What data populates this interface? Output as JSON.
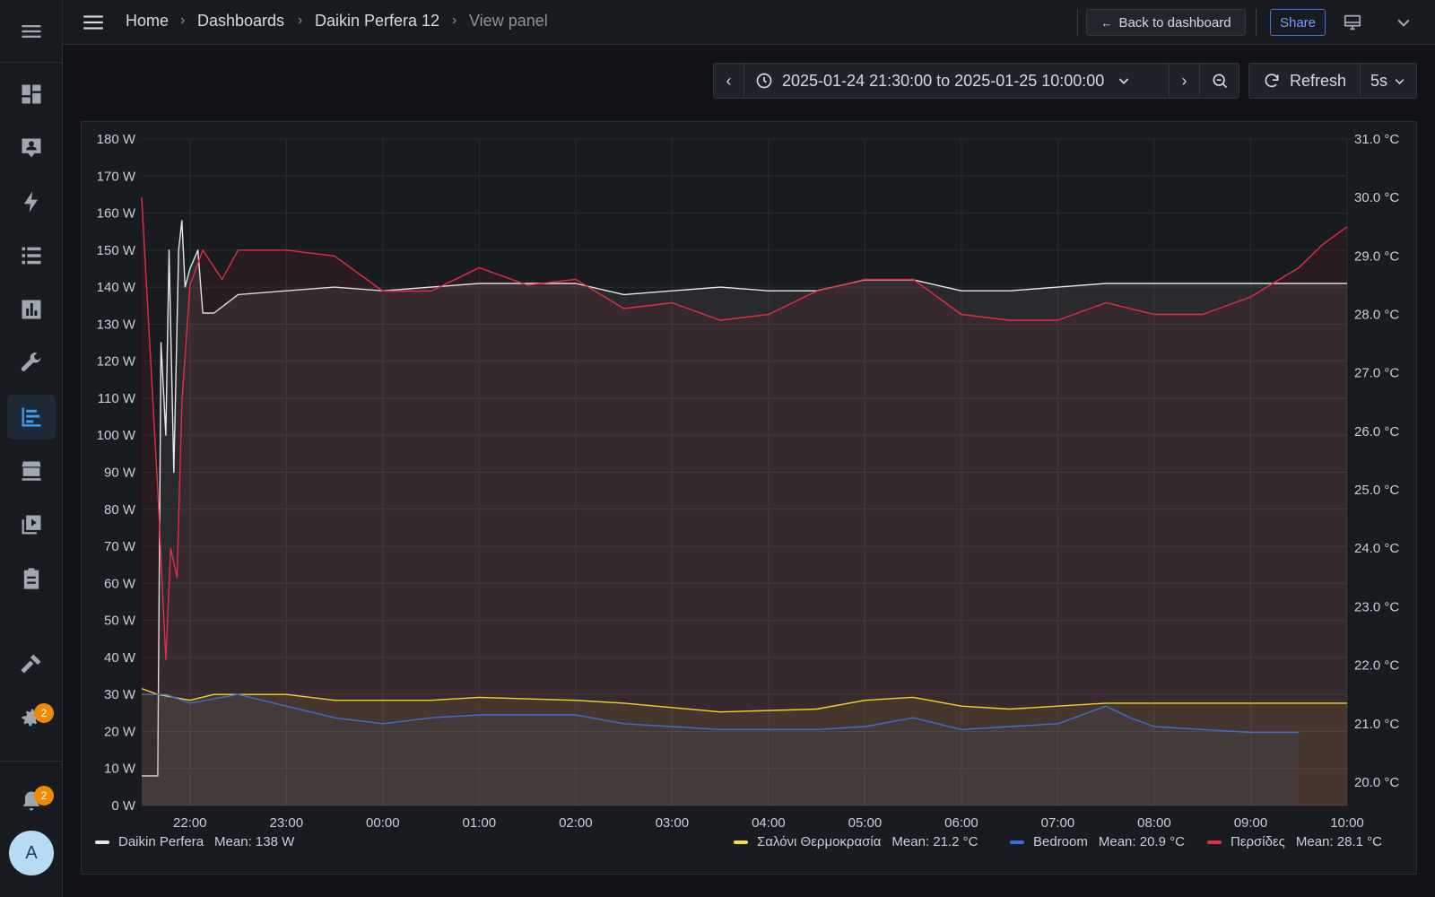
{
  "breadcrumb": {
    "home": "Home",
    "dashboards": "Dashboards",
    "dashboard": "Daikin Perfera 12",
    "current": "View panel"
  },
  "header": {
    "back_label": "Back to dashboard",
    "share_label": "Share"
  },
  "timepicker": {
    "range_label": "2025-01-24 21:30:00 to 2025-01-25 10:00:00",
    "refresh_label": "Refresh",
    "interval": "5s"
  },
  "sidebar": {
    "notifications_count": "2",
    "settings_count": "2",
    "avatar_letter": "A"
  },
  "chart_data": {
    "type": "line",
    "x_range": [
      "2025-01-24 21:30",
      "2025-01-25 10:00"
    ],
    "x_ticks": [
      "22:00",
      "23:00",
      "00:00",
      "01:00",
      "02:00",
      "03:00",
      "04:00",
      "05:00",
      "06:00",
      "07:00",
      "08:00",
      "09:00",
      "10:00"
    ],
    "y_left": {
      "unit": "W",
      "range": [
        0,
        180
      ],
      "ticks": [
        "0 W",
        "10 W",
        "20 W",
        "30 W",
        "40 W",
        "50 W",
        "60 W",
        "70 W",
        "80 W",
        "90 W",
        "100 W",
        "110 W",
        "120 W",
        "130 W",
        "140 W",
        "150 W",
        "160 W",
        "170 W",
        "180 W"
      ]
    },
    "y_right": {
      "unit": "°C",
      "range": [
        19.6,
        31.0
      ],
      "ticks": [
        "20.0 °C",
        "21.0 °C",
        "22.0 °C",
        "23.0 °C",
        "24.0 °C",
        "25.0 °C",
        "26.0 °C",
        "27.0 °C",
        "28.0 °C",
        "29.0 °C",
        "30.0 °C",
        "31.0 °C"
      ]
    },
    "grid": true,
    "legend_placement": "bottom",
    "series": [
      {
        "name": "Daikin Perfera",
        "mean": "Mean: 138 W",
        "color": "#e6e6ea",
        "axis": "left",
        "points": [
          [
            "21:30",
            8
          ],
          [
            "21:40",
            8
          ],
          [
            "21:42",
            125
          ],
          [
            "21:45",
            100
          ],
          [
            "21:47",
            150
          ],
          [
            "21:50",
            90
          ],
          [
            "21:53",
            150
          ],
          [
            "21:55",
            158
          ],
          [
            "21:57",
            140
          ],
          [
            "22:00",
            145
          ],
          [
            "22:05",
            150
          ],
          [
            "22:08",
            133
          ],
          [
            "22:15",
            133
          ],
          [
            "22:30",
            138
          ],
          [
            "23:00",
            139
          ],
          [
            "23:30",
            140
          ],
          [
            "00:00",
            139
          ],
          [
            "00:30",
            140
          ],
          [
            "01:00",
            141
          ],
          [
            "01:30",
            141
          ],
          [
            "02:00",
            141
          ],
          [
            "02:30",
            138
          ],
          [
            "03:00",
            139
          ],
          [
            "03:30",
            140
          ],
          [
            "04:00",
            139
          ],
          [
            "04:30",
            139
          ],
          [
            "05:00",
            142
          ],
          [
            "05:30",
            142
          ],
          [
            "06:00",
            139
          ],
          [
            "06:30",
            139
          ],
          [
            "07:00",
            140
          ],
          [
            "07:30",
            141
          ],
          [
            "08:00",
            141
          ],
          [
            "08:30",
            141
          ],
          [
            "09:00",
            141
          ],
          [
            "09:30",
            141
          ],
          [
            "10:00",
            141
          ]
        ]
      },
      {
        "name": "Σαλόνι Θερμοκρασία",
        "mean": "Mean: 21.2 °C",
        "color": "#fade2a",
        "axis": "right",
        "points": [
          [
            "21:30",
            21.6
          ],
          [
            "21:40",
            21.5
          ],
          [
            "22:00",
            21.4
          ],
          [
            "22:15",
            21.5
          ],
          [
            "23:00",
            21.5
          ],
          [
            "23:30",
            21.4
          ],
          [
            "00:30",
            21.4
          ],
          [
            "01:00",
            21.45
          ],
          [
            "02:00",
            21.4
          ],
          [
            "02:30",
            21.35
          ],
          [
            "03:30",
            21.2
          ],
          [
            "04:30",
            21.25
          ],
          [
            "05:00",
            21.4
          ],
          [
            "05:30",
            21.45
          ],
          [
            "06:00",
            21.3
          ],
          [
            "06:30",
            21.25
          ],
          [
            "07:00",
            21.3
          ],
          [
            "07:30",
            21.35
          ],
          [
            "08:00",
            21.35
          ],
          [
            "09:00",
            21.35
          ],
          [
            "09:30",
            21.35
          ],
          [
            "10:00",
            21.35
          ]
        ]
      },
      {
        "name": "Bedroom",
        "mean": "Mean: 20.9 °C",
        "color": "#3274d9",
        "axis": "right",
        "points": [
          [
            "21:30",
            21.5
          ],
          [
            "21:45",
            21.5
          ],
          [
            "22:00",
            21.35
          ],
          [
            "22:30",
            21.5
          ],
          [
            "23:00",
            21.3
          ],
          [
            "23:30",
            21.1
          ],
          [
            "00:00",
            21.0
          ],
          [
            "00:30",
            21.1
          ],
          [
            "01:00",
            21.15
          ],
          [
            "02:00",
            21.15
          ],
          [
            "02:30",
            21.0
          ],
          [
            "03:00",
            20.95
          ],
          [
            "03:30",
            20.9
          ],
          [
            "04:00",
            20.9
          ],
          [
            "04:30",
            20.9
          ],
          [
            "05:00",
            20.95
          ],
          [
            "05:30",
            21.1
          ],
          [
            "06:00",
            20.9
          ],
          [
            "06:30",
            20.95
          ],
          [
            "07:00",
            21.0
          ],
          [
            "07:30",
            21.3
          ],
          [
            "07:45",
            21.1
          ],
          [
            "08:00",
            20.95
          ],
          [
            "08:30",
            20.9
          ],
          [
            "09:00",
            20.85
          ],
          [
            "09:30",
            20.85
          ]
        ]
      },
      {
        "name": "Περσίδες",
        "mean": "Mean: 28.1 °C",
        "color": "#e02f44",
        "axis": "right",
        "points": [
          [
            "21:30",
            30.0
          ],
          [
            "21:40",
            25.0
          ],
          [
            "21:45",
            22.1
          ],
          [
            "21:48",
            24.0
          ],
          [
            "21:52",
            23.5
          ],
          [
            "21:55",
            26.5
          ],
          [
            "22:00",
            28.5
          ],
          [
            "22:08",
            29.1
          ],
          [
            "22:20",
            28.6
          ],
          [
            "22:30",
            29.1
          ],
          [
            "23:00",
            29.1
          ],
          [
            "23:30",
            29.0
          ],
          [
            "00:00",
            28.4
          ],
          [
            "00:30",
            28.4
          ],
          [
            "01:00",
            28.8
          ],
          [
            "01:30",
            28.5
          ],
          [
            "02:00",
            28.6
          ],
          [
            "02:30",
            28.1
          ],
          [
            "03:00",
            28.2
          ],
          [
            "03:30",
            27.9
          ],
          [
            "04:00",
            28.0
          ],
          [
            "04:30",
            28.4
          ],
          [
            "05:00",
            28.6
          ],
          [
            "05:30",
            28.6
          ],
          [
            "06:00",
            28.0
          ],
          [
            "06:30",
            27.9
          ],
          [
            "07:00",
            27.9
          ],
          [
            "07:30",
            28.2
          ],
          [
            "08:00",
            28.0
          ],
          [
            "08:30",
            28.0
          ],
          [
            "09:00",
            28.3
          ],
          [
            "09:30",
            28.8
          ],
          [
            "09:45",
            29.2
          ],
          [
            "10:00",
            29.5
          ]
        ]
      }
    ]
  }
}
